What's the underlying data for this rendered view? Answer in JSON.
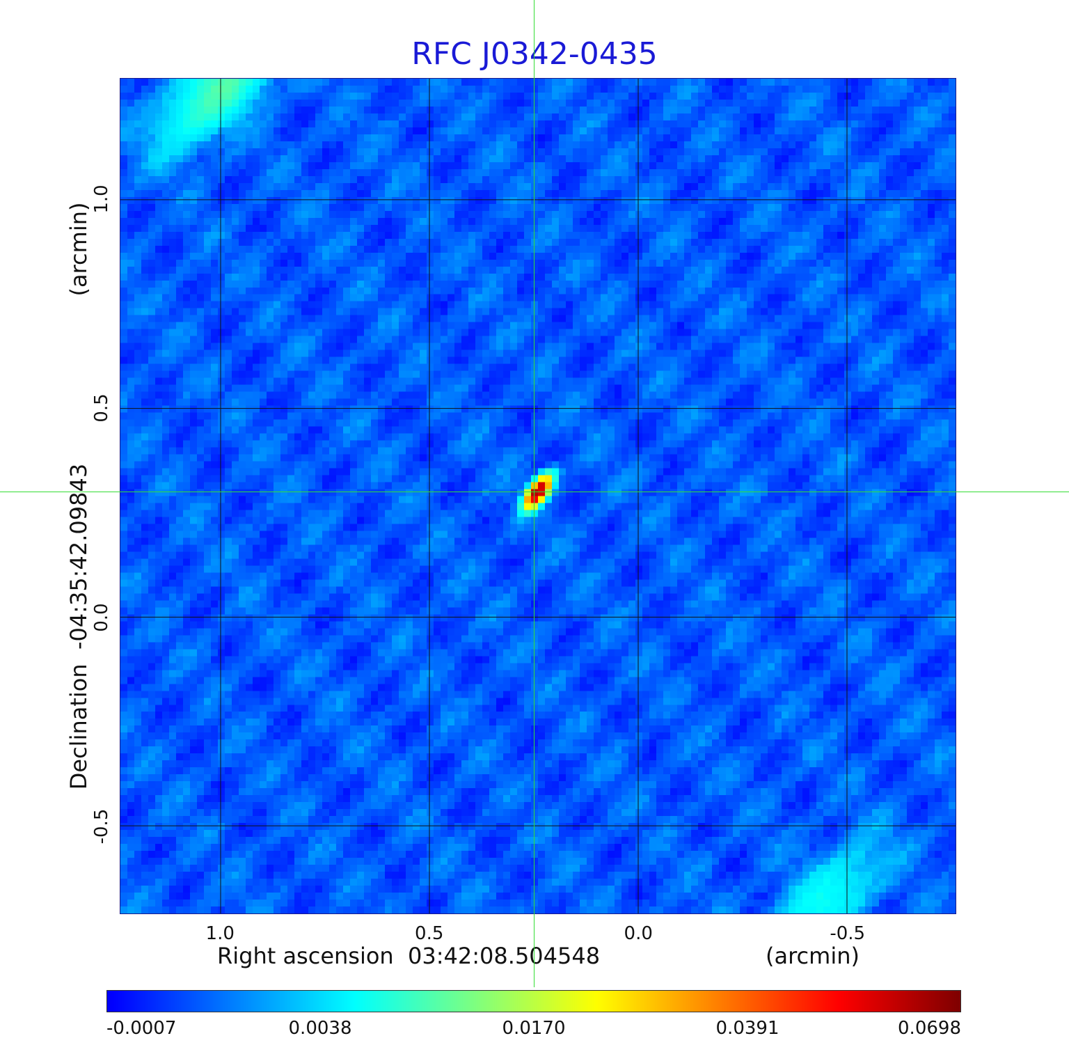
{
  "title": "RFC J0342-0435",
  "chart_data": {
    "type": "heatmap",
    "title": "RFC J0342-0435",
    "xlabel": "Right ascension  03:42:08.504548",
    "xlabel_unit": "(arcmin)",
    "ylabel": "Declination  -04:35:42.09843",
    "ylabel_unit": "(arcmin)",
    "x_axis": {
      "ticks": [
        "1.0",
        "0.5",
        "0.0",
        "-0.5"
      ],
      "range": [
        1.24,
        -0.76
      ],
      "reversed": true
    },
    "y_axis": {
      "ticks": [
        "1.0",
        "0.5",
        "0.0",
        "-0.5"
      ],
      "range": [
        -0.71,
        1.29
      ]
    },
    "grid": true,
    "colormap": "jet",
    "colorbar": {
      "ticks": [
        "-0.0007",
        "0.0038",
        "0.0170",
        "0.0391",
        "0.0698"
      ],
      "range": [
        -0.0007,
        0.0698
      ]
    },
    "peak": {
      "x": 0.24,
      "y": 0.3,
      "value": 0.0698
    },
    "secondary_features": [
      {
        "x": 1.0,
        "y": 1.27,
        "value": 0.009
      },
      {
        "x": -0.45,
        "y": -0.68,
        "value": 0.005
      }
    ],
    "crosshair": {
      "x": 0.25,
      "y": 0.3,
      "color": "#33dd33"
    }
  }
}
